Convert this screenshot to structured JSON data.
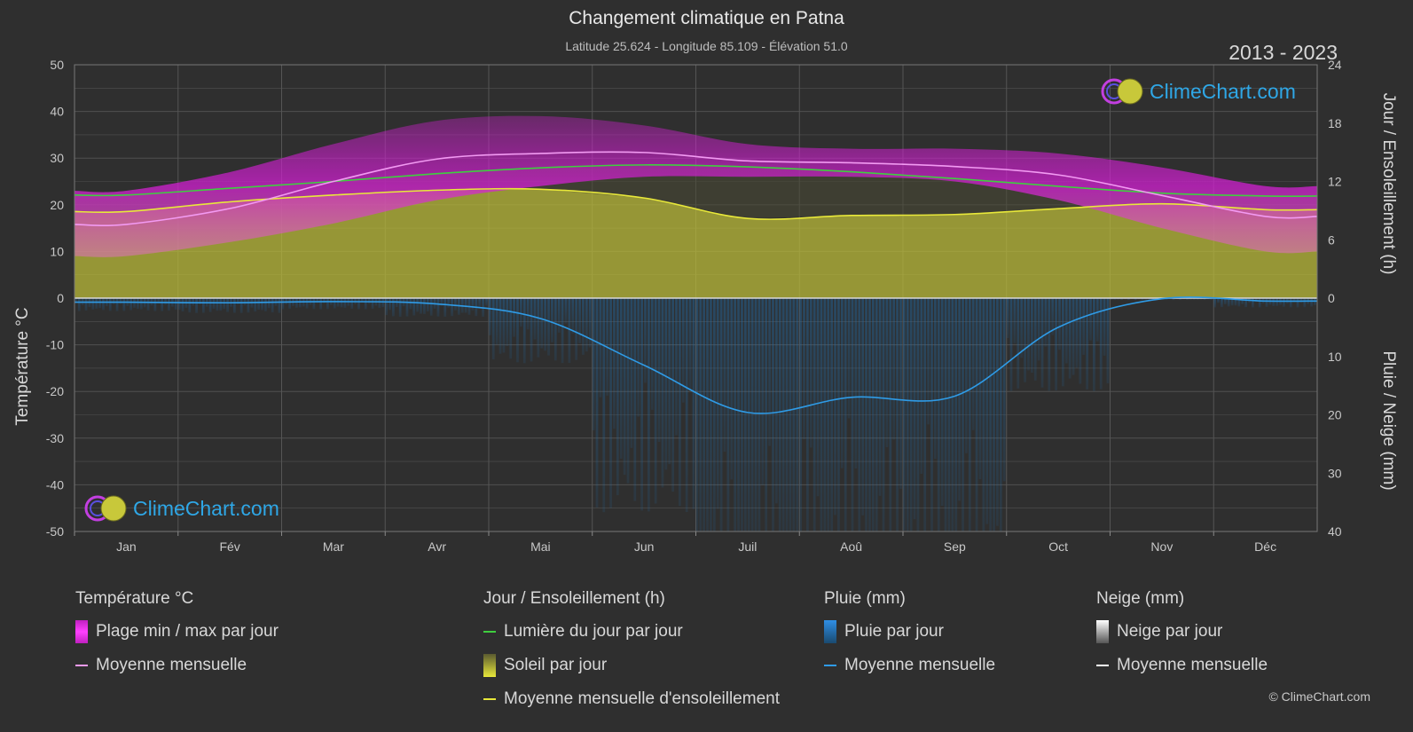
{
  "title": "Changement climatique en Patna",
  "subtitle": "Latitude 25.624 - Longitude 85.109 - Élévation 51.0",
  "years": "2013 - 2023",
  "logo_text": "ClimeChart.com",
  "copyright": "© ClimeChart.com",
  "colors": {
    "background": "#2f2f2f",
    "temp_range": "#d31fd3",
    "temp_mean": "#f29af2",
    "daylight": "#3fcf3f",
    "sunshine": "#b9b93a",
    "sunshine_mean": "#e8e83a",
    "rain": "#2a6ea8",
    "rain_mean": "#2f9be6",
    "snow_mean": "#ffffff",
    "logo_text": "#2fa7e6"
  },
  "legend": {
    "temperature": {
      "head": "Température °C",
      "items": [
        "Plage min / max par jour",
        "Moyenne mensuelle"
      ]
    },
    "sun": {
      "head": "Jour / Ensoleillement (h)",
      "items": [
        "Lumière du jour par jour",
        "Soleil par jour",
        "Moyenne mensuelle d'ensoleillement"
      ]
    },
    "rain": {
      "head": "Pluie (mm)",
      "items": [
        "Pluie par jour",
        "Moyenne mensuelle"
      ]
    },
    "snow": {
      "head": "Neige (mm)",
      "items": [
        "Neige par jour",
        "Moyenne mensuelle"
      ]
    }
  },
  "chart_data": {
    "type": "line",
    "title": "Changement climatique en Patna",
    "categories": [
      "Jan",
      "Fév",
      "Mar",
      "Avr",
      "Mai",
      "Jun",
      "Juil",
      "Aoû",
      "Sep",
      "Oct",
      "Nov",
      "Déc"
    ],
    "axes": {
      "left": {
        "label": "Température °C",
        "range": [
          -50,
          50
        ],
        "ticks": [
          50,
          40,
          30,
          20,
          10,
          0,
          -10,
          -20,
          -30,
          -40,
          -50
        ]
      },
      "right_top": {
        "label": "Jour / Ensoleillement (h)",
        "range": [
          0,
          24
        ],
        "ticks": [
          24,
          18,
          12,
          6,
          0
        ]
      },
      "right_bottom": {
        "label": "Pluie / Neige (mm)",
        "range": [
          0,
          40
        ],
        "ticks": [
          0,
          10,
          20,
          30,
          40
        ]
      }
    },
    "grid": true,
    "series": [
      {
        "name": "Plage min / max par jour",
        "axis": "left",
        "type": "area-range",
        "min": [
          9,
          12,
          16,
          21,
          24,
          26,
          26,
          26,
          25,
          21,
          15,
          10
        ],
        "max": [
          23,
          27,
          33,
          38,
          39,
          37,
          33,
          32,
          32,
          31,
          28,
          24
        ]
      },
      {
        "name": "Moyenne mensuelle",
        "axis": "left",
        "values": [
          15.8,
          19.2,
          25.0,
          29.8,
          31.0,
          31.2,
          29.4,
          29.0,
          28.2,
          26.4,
          22.0,
          17.5
        ]
      },
      {
        "name": "Lumière du jour par jour",
        "axis": "right_top",
        "values": [
          10.6,
          11.3,
          12.0,
          12.8,
          13.4,
          13.7,
          13.5,
          13.0,
          12.3,
          11.5,
          10.8,
          10.5
        ]
      },
      {
        "name": "Soleil par jour",
        "axis": "right_top",
        "type": "area",
        "values": [
          8.9,
          9.9,
          10.6,
          11.1,
          11.2,
          10.3,
          8.2,
          8.5,
          8.6,
          9.2,
          9.7,
          9.1
        ]
      },
      {
        "name": "Moyenne mensuelle d'ensoleillement",
        "axis": "right_top",
        "values": [
          8.9,
          9.9,
          10.6,
          11.1,
          11.2,
          10.3,
          8.2,
          8.5,
          8.6,
          9.2,
          9.7,
          9.1
        ]
      },
      {
        "name": "Pluie par jour",
        "axis": "right_bottom",
        "type": "bar",
        "values": [
          0.7,
          0.8,
          0.6,
          1.0,
          3.5,
          11.5,
          19.6,
          17.0,
          16.8,
          5.0,
          0.1,
          0.5
        ]
      },
      {
        "name": "Moyenne mensuelle",
        "axis": "right_bottom",
        "values": [
          0.7,
          0.8,
          0.6,
          1.0,
          3.5,
          11.5,
          19.6,
          17.0,
          16.8,
          5.0,
          0.1,
          0.5
        ]
      },
      {
        "name": "Neige par jour",
        "axis": "right_bottom",
        "type": "bar",
        "values": [
          0,
          0,
          0,
          0,
          0,
          0,
          0,
          0,
          0,
          0,
          0,
          0
        ]
      }
    ]
  }
}
